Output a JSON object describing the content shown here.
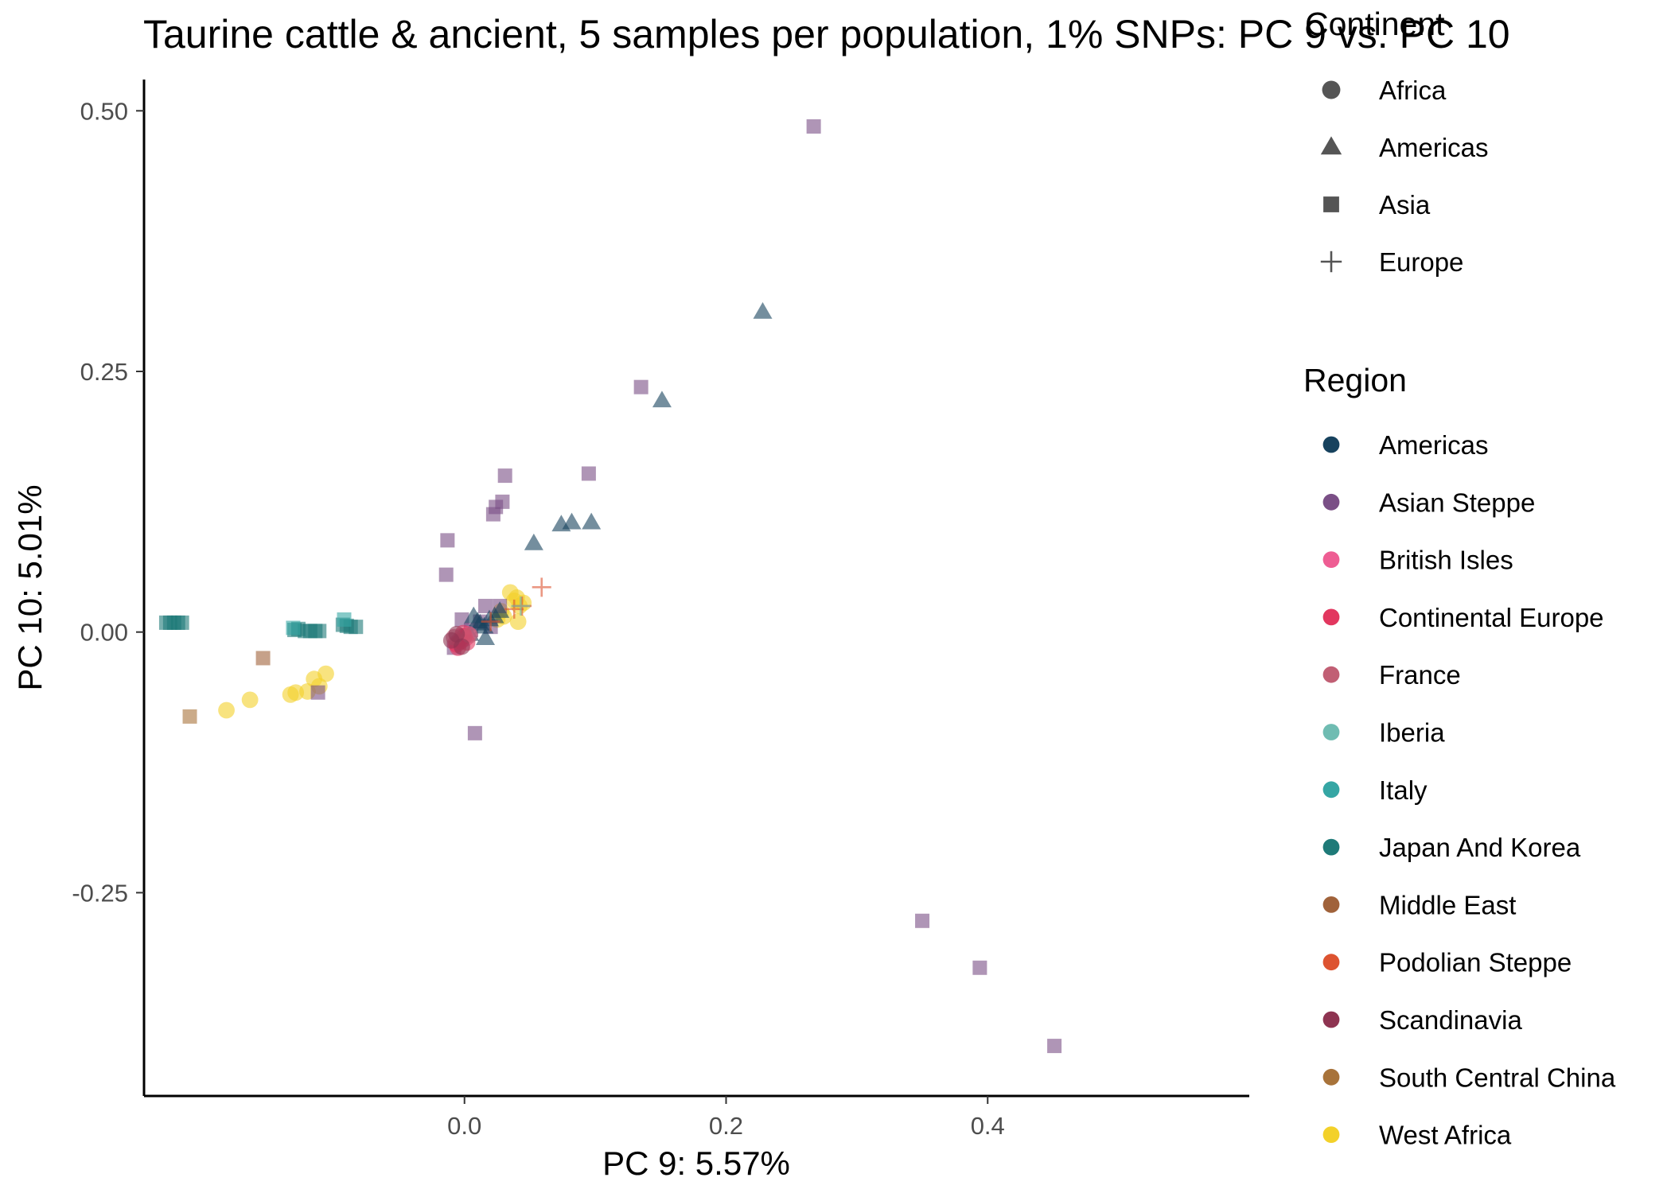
{
  "chart_data": {
    "type": "scatter",
    "title": "Taurine cattle & ancient, 5 samples per population, 1% SNPs: PC 9 vs. PC 10",
    "xlabel": "PC 9: 5.57%",
    "ylabel": "PC 10: 5.01%",
    "xlim": [
      -0.245,
      0.6
    ],
    "ylim": [
      -0.445,
      0.53
    ],
    "x_ticks": [
      0.0,
      0.2,
      0.4
    ],
    "x_tick_labels": [
      "0.0",
      "0.2",
      "0.4"
    ],
    "y_ticks": [
      0.5,
      0.25,
      0.0,
      -0.25
    ],
    "y_tick_labels": [
      "0.50",
      "0.25",
      "0.00",
      "-0.25"
    ],
    "grid": false,
    "legend_position": "right",
    "legends": [
      {
        "title": "Continent",
        "items": [
          {
            "label": "Africa",
            "shape": "circle"
          },
          {
            "label": "Americas",
            "shape": "triangle"
          },
          {
            "label": "Asia",
            "shape": "square"
          },
          {
            "label": "Europe",
            "shape": "plus"
          }
        ]
      },
      {
        "title": "Region",
        "items": [
          {
            "label": "Americas",
            "color": "#17425e"
          },
          {
            "label": "Asian Steppe",
            "color": "#7a4f86"
          },
          {
            "label": "British Isles",
            "color": "#ee5d93"
          },
          {
            "label": "Continental Europe",
            "color": "#e2375f"
          },
          {
            "label": "France",
            "color": "#c15f74"
          },
          {
            "label": "Iberia",
            "color": "#6fbcb2"
          },
          {
            "label": "Italy",
            "color": "#35a6a4"
          },
          {
            "label": "Japan And Korea",
            "color": "#1e7a78"
          },
          {
            "label": "Middle East",
            "color": "#a0623a"
          },
          {
            "label": "Podolian Steppe",
            "color": "#dd5330"
          },
          {
            "label": "Scandinavia",
            "color": "#8e3451"
          },
          {
            "label": "South Central China",
            "color": "#a8733a"
          },
          {
            "label": "West Africa",
            "color": "#f3d12a"
          }
        ]
      }
    ],
    "series": [
      {
        "name": "West Africa",
        "color": "#f3d12a",
        "shape": "circle",
        "points": [
          [
            -0.182,
            -0.075
          ],
          [
            -0.164,
            -0.065
          ],
          [
            -0.133,
            -0.06
          ],
          [
            -0.129,
            -0.058
          ],
          [
            -0.12,
            -0.057
          ],
          [
            -0.115,
            -0.045
          ],
          [
            -0.111,
            -0.052
          ],
          [
            -0.106,
            -0.04
          ],
          [
            0.035,
            0.038
          ],
          [
            0.04,
            0.033
          ],
          [
            0.042,
            0.025
          ],
          [
            0.041,
            0.01
          ],
          [
            0.03,
            0.015
          ],
          [
            0.028,
            0.02
          ],
          [
            0.025,
            0.012
          ],
          [
            0.038,
            0.03
          ],
          [
            0.045,
            0.028
          ]
        ]
      },
      {
        "name": "Japan And Korea",
        "color": "#1e7a78",
        "shape": "square",
        "points": [
          [
            -0.228,
            0.009
          ],
          [
            -0.225,
            0.009
          ],
          [
            -0.222,
            0.009
          ],
          [
            -0.219,
            0.009
          ],
          [
            -0.216,
            0.009
          ],
          [
            -0.13,
            0.002
          ],
          [
            -0.127,
            0.003
          ],
          [
            -0.122,
            0.001
          ],
          [
            -0.118,
            0.001
          ],
          [
            -0.114,
            0.001
          ],
          [
            -0.111,
            0.001
          ],
          [
            -0.093,
            0.007
          ],
          [
            -0.09,
            0.006
          ],
          [
            -0.087,
            0.005
          ],
          [
            -0.083,
            0.005
          ]
        ]
      },
      {
        "name": "Italy",
        "color": "#35a6a4",
        "shape": "square",
        "points": [
          [
            -0.131,
            0.004
          ],
          [
            -0.092,
            0.012
          ]
        ]
      },
      {
        "name": "Asian Steppe",
        "color": "#7a4f86",
        "shape": "square",
        "points": [
          [
            0.267,
            0.485
          ],
          [
            0.135,
            0.235
          ],
          [
            0.095,
            0.152
          ],
          [
            0.031,
            0.15
          ],
          [
            0.029,
            0.125
          ],
          [
            0.024,
            0.12
          ],
          [
            0.022,
            0.113
          ],
          [
            -0.013,
            0.088
          ],
          [
            -0.014,
            0.055
          ],
          [
            -0.112,
            -0.058
          ],
          [
            0.008,
            -0.097
          ],
          [
            0.35,
            -0.277
          ],
          [
            0.394,
            -0.322
          ],
          [
            0.451,
            -0.397
          ],
          [
            -0.002,
            0.012
          ],
          [
            0.016,
            0.025
          ],
          [
            0.027,
            0.025
          ],
          [
            0.02,
            0.005
          ],
          [
            -0.008,
            -0.015
          ],
          [
            0.005,
            0.002
          ],
          [
            0.012,
            0.01
          ]
        ]
      },
      {
        "name": "Americas",
        "color": "#17425e",
        "shape": "triangle",
        "points": [
          [
            0.228,
            0.307
          ],
          [
            0.151,
            0.222
          ],
          [
            0.097,
            0.105
          ],
          [
            0.082,
            0.105
          ],
          [
            0.074,
            0.103
          ],
          [
            0.053,
            0.085
          ],
          [
            0.007,
            0.015
          ],
          [
            0.01,
            0.01
          ],
          [
            0.015,
            0.005
          ],
          [
            0.019,
            0.012
          ],
          [
            0.023,
            0.015
          ],
          [
            0.016,
            -0.006
          ],
          [
            0.004,
            -0.002
          ],
          [
            0.012,
            0.008
          ],
          [
            0.027,
            0.02
          ]
        ]
      },
      {
        "name": "Middle East",
        "color": "#a0623a",
        "shape": "square",
        "points": [
          [
            -0.154,
            -0.025
          ]
        ]
      },
      {
        "name": "South Central China",
        "color": "#a8733a",
        "shape": "square",
        "points": [
          [
            -0.21,
            -0.081
          ]
        ]
      },
      {
        "name": "Podolian Steppe",
        "color": "#dd5330",
        "shape": "plus",
        "points": [
          [
            0.059,
            0.043
          ],
          [
            0.044,
            0.025
          ],
          [
            0.038,
            0.022
          ],
          [
            0.02,
            0.01
          ]
        ]
      },
      {
        "name": "Iberia",
        "color": "#6fbcb2",
        "shape": "plus",
        "points": [
          [
            0.043,
            0.025
          ]
        ]
      },
      {
        "name": "British Isles",
        "color": "#ee5d93",
        "shape": "circle",
        "points": [
          [
            -0.004,
            -0.008
          ],
          [
            -0.002,
            -0.004
          ],
          [
            0.001,
            -0.006
          ],
          [
            -0.007,
            -0.011
          ],
          [
            0.003,
            -0.002
          ]
        ]
      },
      {
        "name": "Continental Europe",
        "color": "#e2375f",
        "shape": "circle",
        "points": [
          [
            -0.006,
            -0.012
          ],
          [
            -0.003,
            -0.009
          ],
          [
            0.0,
            -0.004
          ],
          [
            -0.005,
            -0.015
          ],
          [
            0.002,
            -0.01
          ],
          [
            -0.001,
            -0.001
          ]
        ]
      },
      {
        "name": "France",
        "color": "#c15f74",
        "shape": "circle",
        "points": [
          [
            -0.008,
            -0.005
          ],
          [
            0.004,
            -0.003
          ]
        ]
      },
      {
        "name": "Scandinavia",
        "color": "#8e3451",
        "shape": "circle",
        "points": [
          [
            -0.01,
            -0.008
          ],
          [
            -0.006,
            -0.002
          ],
          [
            -0.002,
            -0.014
          ]
        ]
      }
    ]
  }
}
